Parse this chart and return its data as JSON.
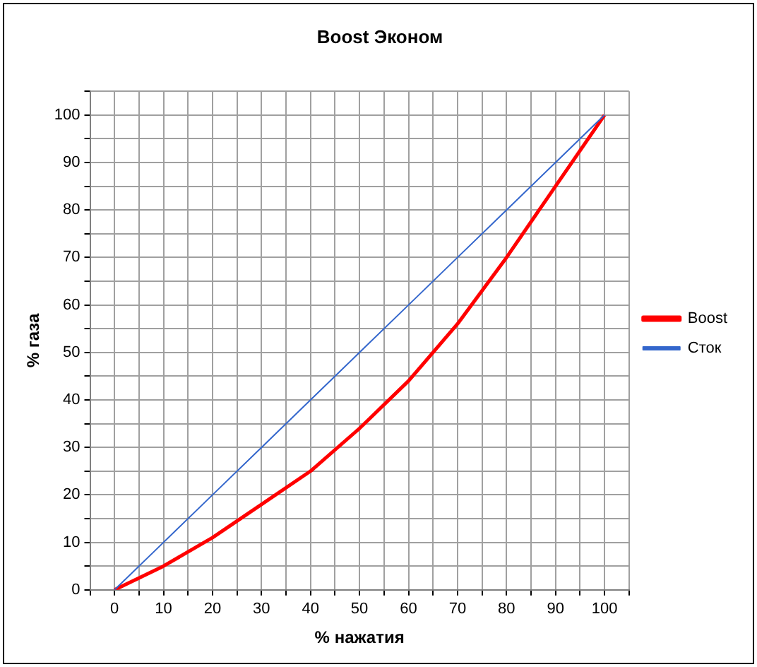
{
  "chart_data": {
    "type": "line",
    "title": "Boost Эконом",
    "xlabel": "% нажатия",
    "ylabel": "% газа",
    "x": [
      0,
      10,
      20,
      30,
      40,
      50,
      60,
      70,
      80,
      90,
      100
    ],
    "series": [
      {
        "name": "Boost",
        "color": "#ff0000",
        "values": [
          0,
          5,
          11,
          18,
          25,
          34,
          44,
          56,
          70,
          85,
          100
        ]
      },
      {
        "name": "Сток",
        "color": "#3366cc",
        "values": [
          0,
          10,
          20,
          30,
          40,
          50,
          60,
          70,
          80,
          90,
          100
        ]
      }
    ],
    "xlim": [
      -5,
      105
    ],
    "ylim": [
      0,
      105
    ],
    "xticks": [
      {
        "value": -5,
        "label": null
      },
      0,
      {
        "value": 5,
        "label": null
      },
      10,
      {
        "value": 15,
        "label": null
      },
      20,
      {
        "value": 25,
        "label": null
      },
      30,
      {
        "value": 35,
        "label": null
      },
      40,
      {
        "value": 45,
        "label": null
      },
      50,
      {
        "value": 55,
        "label": null
      },
      60,
      {
        "value": 65,
        "label": null
      },
      70,
      {
        "value": 75,
        "label": null
      },
      80,
      {
        "value": 85,
        "label": null
      },
      90,
      {
        "value": 95,
        "label": null
      },
      100,
      {
        "value": 105,
        "label": null
      }
    ],
    "yticks": [
      0,
      {
        "value": 5,
        "label": null
      },
      10,
      {
        "value": 15,
        "label": null
      },
      20,
      {
        "value": 25,
        "label": null
      },
      30,
      {
        "value": 35,
        "label": null
      },
      40,
      {
        "value": 45,
        "label": null
      },
      50,
      {
        "value": 55,
        "label": null
      },
      60,
      {
        "value": 65,
        "label": null
      },
      70,
      {
        "value": 75,
        "label": null
      },
      80,
      {
        "value": 85,
        "label": null
      },
      90,
      {
        "value": 95,
        "label": null
      },
      100,
      {
        "value": 105,
        "label": null
      }
    ],
    "grid": true,
    "legend": "right",
    "marker": "none",
    "line_style": "solid"
  }
}
